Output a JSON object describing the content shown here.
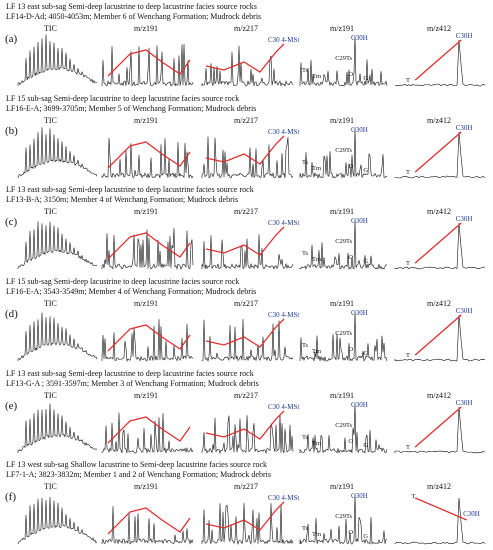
{
  "panels": [
    {
      "letter": "(a)",
      "line1": "LF 13 east sub-sag   Semi-deep lacustrine to deep lacustrine facies source rocks",
      "line2": "LF14-D-Ad; 4050-4053m;  Member 6 of  Wenchang Formation;  Mudrock debris",
      "tic": "TIC",
      "m191": "m/z191",
      "m217": "m/z217",
      "m191b": "m/z191",
      "m412": "m/z412"
    },
    {
      "letter": "(b)",
      "line1": "LF 15 sub-sag  Semi-deep lacustrine to deep lacustrine facies source rock",
      "line2": "LF16-E-A; 3699-3705m; Member 5 of  Wenchang Formation;  Mudrock debris",
      "tic": "TIC",
      "m191": "m/z191",
      "m217": "m/z217",
      "m191b": "m/z191",
      "m412": "m/z412"
    },
    {
      "letter": "(c)",
      "line1": "LF 13 east sub-sag  Semi-deep lacustrine to deep lacustrine facies source rock",
      "line2": "LF13-B-A; 3150m; Member 4 of  Wenchang Formation;  Mudrock debris",
      "tic": "TIC",
      "m191": "m/z191",
      "m217": "m/z217",
      "m191b": "m/z191",
      "m412": "m/z412"
    },
    {
      "letter": "(d)",
      "line1": "LF 15 sub-sag  Semi-deep lacustrine to deep lacustrine facies source rock",
      "line2": "LF16-E-A; 3543-3549m; Member 4 of  Wenchang Formation;  Mudrock debris",
      "tic": "TIC",
      "m191": "m/z191",
      "m217": "m/z217",
      "m191b": "m/z191",
      "m412": "m/z412"
    },
    {
      "letter": "(e)",
      "line1": "LF 13 east sub-sag  Semi-deep lacustrine to deep lacustrine facies source rock",
      "line2": "LF13-G-A ; 3591-3597m; Member 3 of  Wenchang Formation;  Mudrock debris",
      "tic": "TIC",
      "m191": "m/z191",
      "m217": "m/z217",
      "m191b": "m/z191",
      "m412": "m/z412"
    },
    {
      "letter": "(f)",
      "line1": "LF 13 west sub-sag  Shallow lacustrine to Semi-deep lacustrine  facies source rock",
      "line2": "LF7-1-A; 3823-3832m; Member 1 and 2 of  Wenchang Formation;  Mudrock debris",
      "tic": "TIC",
      "m191": "m/z191",
      "m217": "m/z217",
      "m191b": "m/z191",
      "m412": "m/z412"
    }
  ],
  "peak_labels": {
    "c30_4mst": "C30 4-MSt",
    "c30h": "C30H",
    "c29ts": "C29Ts",
    "ts": "Ts",
    "tm": "Tm",
    "g": "G",
    "o": "O",
    "t": "T"
  },
  "colors": {
    "trace": "#111111",
    "envelope": "#e03030",
    "label": "#1f3a93"
  }
}
